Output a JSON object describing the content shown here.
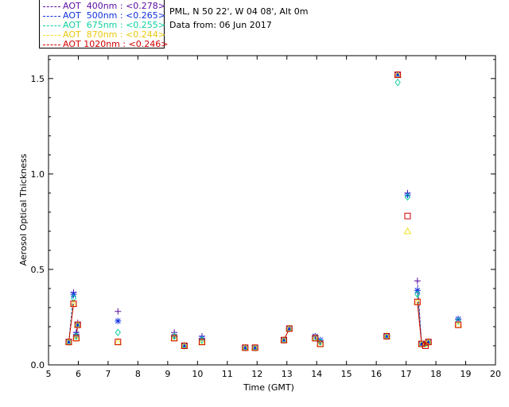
{
  "header": {
    "location": "PML, N 50 22', W 04 08', Alt 0m",
    "date": "Data from: 06 Jun 2017"
  },
  "legend": [
    {
      "label": "AOT  400nm : <0.278>",
      "color": "#5a0ea0"
    },
    {
      "label": "AOT  500nm : <0.265>",
      "color": "#1030e0"
    },
    {
      "label": "AOT  675nm : <0.255>",
      "color": "#10d0a0"
    },
    {
      "label": "AOT  870nm : <0.244>",
      "color": "#f0e020"
    },
    {
      "label": "AOT 1020nm : <0.246>",
      "color": "#d00000"
    }
  ],
  "chart_data": {
    "type": "scatter",
    "xlabel": "Time (GMT)",
    "ylabel": "Aerosol Optical Thickness",
    "xlim": [
      5,
      20
    ],
    "ylim": [
      0,
      1.62
    ],
    "xticks": [
      "5",
      "6",
      "7",
      "8",
      "9",
      "10",
      "11",
      "12",
      "13",
      "14",
      "15",
      "16",
      "17",
      "18",
      "19",
      "20"
    ],
    "yticks": [
      "0.0",
      "0.5",
      "1.0",
      "1.5"
    ],
    "ytick_values": [
      0,
      0.5,
      1.0,
      1.5
    ],
    "series": [
      {
        "name": "AOT 400nm",
        "marker": "plus",
        "color": "#5a0ea0",
        "points": [
          [
            5.68,
            0.12
          ],
          [
            5.84,
            0.38
          ],
          [
            5.93,
            0.17
          ],
          [
            5.98,
            0.22
          ],
          [
            7.33,
            0.28
          ],
          [
            9.22,
            0.17
          ],
          [
            9.56,
            0.1
          ],
          [
            10.15,
            0.15
          ],
          [
            11.6,
            0.09
          ],
          [
            11.93,
            0.09
          ],
          [
            12.9,
            0.13
          ],
          [
            13.08,
            0.19
          ],
          [
            13.95,
            0.15
          ],
          [
            14.12,
            0.12
          ],
          [
            16.35,
            0.15
          ],
          [
            16.72,
            1.52
          ],
          [
            17.05,
            0.9
          ],
          [
            17.38,
            0.44
          ],
          [
            17.52,
            0.11
          ],
          [
            17.65,
            0.11
          ],
          [
            17.75,
            0.12
          ],
          [
            18.75,
            0.24
          ]
        ]
      },
      {
        "name": "AOT 500nm",
        "marker": "star",
        "color": "#1030e0",
        "points": [
          [
            5.68,
            0.12
          ],
          [
            5.84,
            0.37
          ],
          [
            5.93,
            0.16
          ],
          [
            5.98,
            0.21
          ],
          [
            7.33,
            0.23
          ],
          [
            9.22,
            0.15
          ],
          [
            9.56,
            0.1
          ],
          [
            10.15,
            0.14
          ],
          [
            11.6,
            0.09
          ],
          [
            11.93,
            0.09
          ],
          [
            12.9,
            0.13
          ],
          [
            13.08,
            0.19
          ],
          [
            13.95,
            0.15
          ],
          [
            14.12,
            0.13
          ],
          [
            16.35,
            0.15
          ],
          [
            16.72,
            1.52
          ],
          [
            17.05,
            0.89
          ],
          [
            17.38,
            0.39
          ],
          [
            17.52,
            0.11
          ],
          [
            17.65,
            0.11
          ],
          [
            17.75,
            0.12
          ],
          [
            18.75,
            0.24
          ]
        ]
      },
      {
        "name": "AOT 675nm",
        "marker": "diamond",
        "color": "#10d0a0",
        "points": [
          [
            5.68,
            0.12
          ],
          [
            5.84,
            0.35
          ],
          [
            5.93,
            0.15
          ],
          [
            5.98,
            0.21
          ],
          [
            7.33,
            0.17
          ],
          [
            9.22,
            0.15
          ],
          [
            9.56,
            0.1
          ],
          [
            10.15,
            0.13
          ],
          [
            11.6,
            0.09
          ],
          [
            11.93,
            0.09
          ],
          [
            12.9,
            0.13
          ],
          [
            13.08,
            0.19
          ],
          [
            13.95,
            0.14
          ],
          [
            14.12,
            0.12
          ],
          [
            16.35,
            0.15
          ],
          [
            16.72,
            1.48
          ],
          [
            17.05,
            0.88
          ],
          [
            17.38,
            0.37
          ],
          [
            17.52,
            0.11
          ],
          [
            17.65,
            0.11
          ],
          [
            17.75,
            0.12
          ],
          [
            18.75,
            0.23
          ]
        ]
      },
      {
        "name": "AOT 870nm",
        "marker": "triangle",
        "color": "#f0e020",
        "points": [
          [
            5.68,
            0.12
          ],
          [
            5.84,
            0.32
          ],
          [
            5.93,
            0.14
          ],
          [
            5.98,
            0.21
          ],
          [
            7.33,
            0.12
          ],
          [
            9.22,
            0.14
          ],
          [
            9.56,
            0.1
          ],
          [
            10.15,
            0.12
          ],
          [
            11.6,
            0.09
          ],
          [
            11.93,
            0.09
          ],
          [
            12.9,
            0.13
          ],
          [
            13.08,
            0.19
          ],
          [
            13.95,
            0.14
          ],
          [
            14.12,
            0.11
          ],
          [
            16.35,
            0.15
          ],
          [
            16.72,
            1.52
          ],
          [
            17.05,
            0.7
          ],
          [
            17.38,
            0.33
          ],
          [
            17.52,
            0.11
          ],
          [
            17.65,
            0.11
          ],
          [
            17.75,
            0.12
          ],
          [
            18.75,
            0.21
          ]
        ]
      },
      {
        "name": "AOT 1020nm",
        "marker": "square",
        "color": "#d00000",
        "points": [
          [
            5.68,
            0.12
          ],
          [
            5.84,
            0.32
          ],
          [
            5.93,
            0.14
          ],
          [
            5.98,
            0.21
          ],
          [
            7.33,
            0.12
          ],
          [
            9.22,
            0.14
          ],
          [
            9.56,
            0.1
          ],
          [
            10.15,
            0.12
          ],
          [
            11.6,
            0.09
          ],
          [
            11.93,
            0.09
          ],
          [
            12.9,
            0.13
          ],
          [
            13.08,
            0.19
          ],
          [
            13.95,
            0.14
          ],
          [
            14.12,
            0.11
          ],
          [
            16.35,
            0.15
          ],
          [
            16.72,
            1.52
          ],
          [
            17.05,
            0.78
          ],
          [
            17.38,
            0.33
          ],
          [
            17.52,
            0.11
          ],
          [
            17.65,
            0.1
          ],
          [
            17.75,
            0.12
          ],
          [
            18.75,
            0.21
          ]
        ]
      }
    ]
  }
}
